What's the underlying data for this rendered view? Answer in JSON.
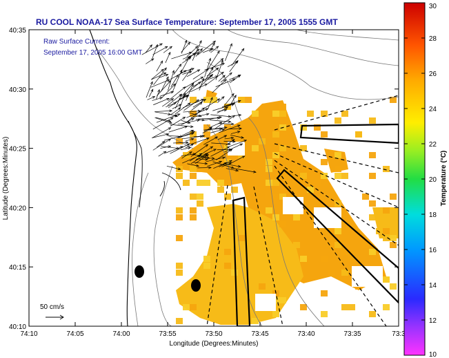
{
  "chart_data": {
    "type": "heatmap",
    "title": "RU COOL  NOAA-17  Sea Surface Temperature:  September 17, 2005 1555 GMT",
    "annotation": {
      "line1": "Raw Surface Current:",
      "line2": "September 17, 2005 16:00 GMT"
    },
    "scale_label": "50 cm/s",
    "xlabel": "Longitude (Degrees:Minutes)",
    "ylabel": "Latitude (Degrees:Minutes)",
    "x_ticks": [
      "74:10",
      "74:05",
      "74:00",
      "73:55",
      "73:50",
      "73:45",
      "73:40",
      "73:35",
      "73:3"
    ],
    "y_ticks": [
      "40:35",
      "40:30",
      "40:25",
      "40:20",
      "40:15",
      "40:10"
    ],
    "colorbar": {
      "label": "Temperature (°C)",
      "ticks": [
        "30",
        "28",
        "26",
        "24",
        "22",
        "20",
        "18",
        "16",
        "14",
        "12",
        "10"
      ],
      "min": 10,
      "max": 30
    },
    "sst_range_visible": [
      22,
      25
    ],
    "colors": {
      "title": "#1a1aa0",
      "sst_warm": "#f5a50e",
      "sst_mid": "#f7bb18",
      "sst_cool": "#f9cc28"
    }
  }
}
